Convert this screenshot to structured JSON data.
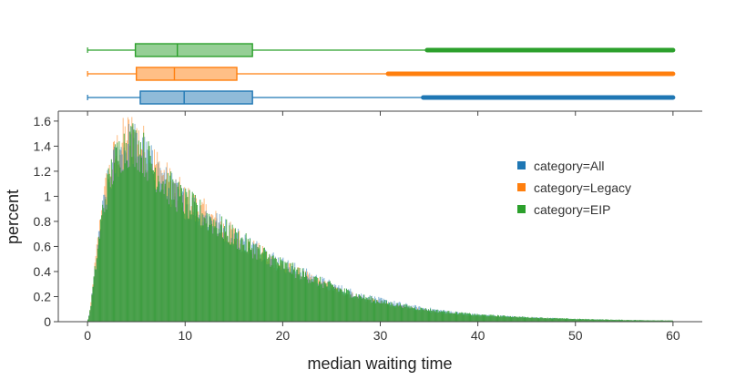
{
  "chart_data": {
    "type": "bar",
    "subtype": "histogram-with-marginal-boxplots",
    "title": "",
    "xlabel": "median waiting time",
    "ylabel": "percent",
    "xlim": [
      -3,
      63
    ],
    "ylim": [
      0,
      1.65
    ],
    "x_ticks": [
      0,
      10,
      20,
      30,
      40,
      50,
      60
    ],
    "y_ticks": [
      0,
      0.2,
      0.4,
      0.6,
      0.8,
      1,
      1.2,
      1.4,
      1.6
    ],
    "y_tick_labels": [
      "0",
      "0.2",
      "0.4",
      "0.6",
      "0.8",
      "1",
      "1.2",
      "1.4",
      "1.6"
    ],
    "bin_width": 0.1,
    "grid": false,
    "legend": {
      "placement": "right"
    },
    "series": [
      {
        "name": "category=All",
        "color": "#1f77b4",
        "histogram_profile": {
          "x": [
            0,
            0.3,
            0.6,
            1,
            1.5,
            2,
            2.5,
            3,
            3.5,
            4,
            4.5,
            5,
            5.5,
            6,
            7,
            8,
            9,
            10,
            12,
            14,
            16,
            18,
            20,
            22,
            24,
            26,
            28,
            30,
            32,
            34,
            36,
            38,
            40,
            45,
            50,
            55,
            60
          ],
          "percent": [
            0,
            0.1,
            0.3,
            0.55,
            0.85,
            1.05,
            1.2,
            1.3,
            1.36,
            1.4,
            1.42,
            1.4,
            1.36,
            1.3,
            1.2,
            1.1,
            1.02,
            0.95,
            0.85,
            0.74,
            0.64,
            0.55,
            0.46,
            0.39,
            0.32,
            0.26,
            0.21,
            0.17,
            0.14,
            0.11,
            0.09,
            0.07,
            0.055,
            0.035,
            0.02,
            0.012,
            0.008
          ]
        },
        "box": {
          "min": 0,
          "q1": 5.4,
          "median": 9.9,
          "q3": 16.9,
          "upper_fence": 34.4,
          "outliers_to": 60
        }
      },
      {
        "name": "category=Legacy",
        "color": "#ff7f0e",
        "histogram_profile": {
          "x": [
            0,
            0.3,
            0.6,
            1,
            1.5,
            2,
            2.5,
            3,
            3.5,
            4,
            4.5,
            5,
            5.5,
            6,
            7,
            8,
            9,
            10,
            12,
            14,
            16,
            18,
            20,
            22,
            24,
            26,
            28,
            30,
            32,
            34,
            36,
            38,
            40,
            45,
            50,
            55,
            60
          ],
          "percent": [
            0,
            0.1,
            0.32,
            0.6,
            0.9,
            1.1,
            1.25,
            1.36,
            1.42,
            1.47,
            1.49,
            1.47,
            1.42,
            1.36,
            1.25,
            1.14,
            1.05,
            0.97,
            0.86,
            0.74,
            0.63,
            0.53,
            0.44,
            0.37,
            0.3,
            0.24,
            0.19,
            0.15,
            0.12,
            0.095,
            0.075,
            0.06,
            0.045,
            0.03,
            0.018,
            0.01,
            0.007
          ]
        },
        "box": {
          "min": 0,
          "q1": 5.0,
          "median": 8.9,
          "q3": 15.3,
          "upper_fence": 30.8,
          "outliers_to": 60
        }
      },
      {
        "name": "category=EIP",
        "color": "#2ca02c",
        "histogram_profile": {
          "x": [
            0,
            0.3,
            0.6,
            1,
            1.5,
            2,
            2.5,
            3,
            3.5,
            4,
            4.5,
            5,
            5.5,
            6,
            7,
            8,
            9,
            10,
            12,
            14,
            16,
            18,
            20,
            22,
            24,
            26,
            28,
            30,
            32,
            34,
            36,
            38,
            40,
            45,
            50,
            55,
            60
          ],
          "percent": [
            0,
            0.1,
            0.3,
            0.55,
            0.85,
            1.05,
            1.2,
            1.3,
            1.37,
            1.41,
            1.43,
            1.41,
            1.37,
            1.31,
            1.2,
            1.1,
            1.02,
            0.95,
            0.84,
            0.73,
            0.63,
            0.54,
            0.45,
            0.38,
            0.31,
            0.25,
            0.2,
            0.16,
            0.13,
            0.105,
            0.085,
            0.07,
            0.055,
            0.035,
            0.022,
            0.014,
            0.009
          ]
        },
        "box": {
          "min": 0,
          "q1": 4.9,
          "median": 9.2,
          "q3": 16.9,
          "upper_fence": 34.8,
          "outliers_to": 60
        }
      }
    ]
  }
}
